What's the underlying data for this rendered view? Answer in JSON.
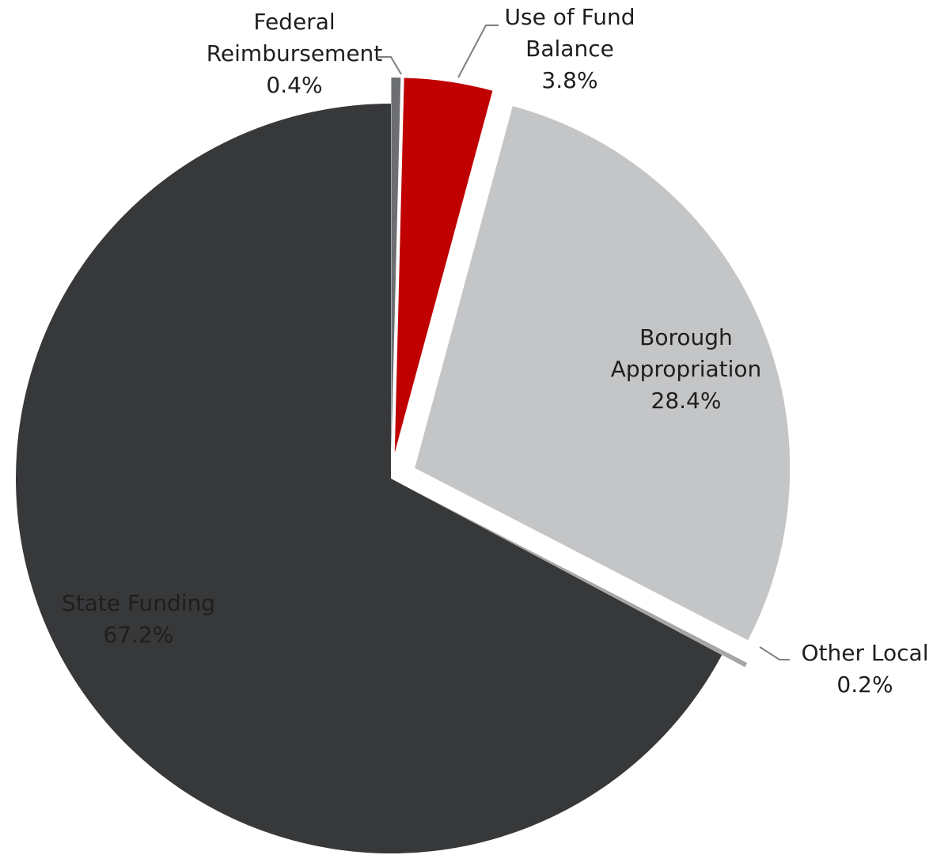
{
  "chart_data": {
    "type": "pie",
    "title": "",
    "start_angle_deg": 0,
    "direction": "clockwise",
    "slices": [
      {
        "label_lines": [
          "Federal",
          "Reimbursement"
        ],
        "value_label": "0.4%",
        "value": 0.4,
        "color": "#6d6e71",
        "exploded": true
      },
      {
        "label_lines": [
          "Use of Fund",
          "Balance"
        ],
        "value_label": "3.8%",
        "value": 3.8,
        "color": "#c00000",
        "exploded": true
      },
      {
        "label_lines": [
          "Borough",
          "Appropriation"
        ],
        "value_label": "28.4%",
        "value": 28.4,
        "color": "#c4c5c7",
        "exploded": true
      },
      {
        "label_lines": [
          "Other Local"
        ],
        "value_label": "0.2%",
        "value": 0.2,
        "color": "#a6a6a6",
        "exploded": true
      },
      {
        "label_lines": [
          "State Funding"
        ],
        "value_label": "67.2%",
        "value": 67.2,
        "color": "#37383a",
        "exploded": false
      }
    ]
  }
}
